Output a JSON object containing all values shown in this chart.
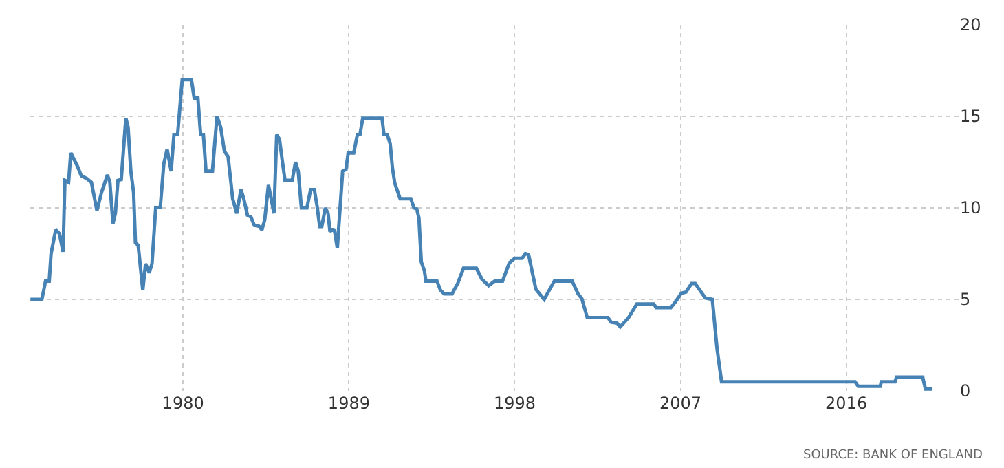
{
  "chart_data": {
    "type": "line",
    "line_style": "solid",
    "marker": "none",
    "grid": true,
    "x": [
      1971.71,
      1972.33,
      1972.53,
      1972.73,
      1972.83,
      1973.08,
      1973.28,
      1973.48,
      1973.58,
      1973.78,
      1973.9,
      1974.27,
      1974.47,
      1974.77,
      1975.02,
      1975.32,
      1975.57,
      1975.89,
      1976.02,
      1976.19,
      1976.32,
      1976.46,
      1976.64,
      1976.89,
      1977.01,
      1977.16,
      1977.31,
      1977.41,
      1977.56,
      1977.81,
      1977.96,
      1978.16,
      1978.31,
      1978.51,
      1978.76,
      1978.95,
      1979.13,
      1979.35,
      1979.5,
      1979.7,
      1979.95,
      1980.45,
      1980.6,
      1980.8,
      1980.95,
      1981.1,
      1981.24,
      1981.59,
      1981.84,
      1982.04,
      1982.24,
      1982.44,
      1982.69,
      1982.91,
      1983.14,
      1983.29,
      1983.49,
      1983.68,
      1983.86,
      1984.11,
      1984.28,
      1984.43,
      1984.63,
      1984.78,
      1984.93,
      1985.08,
      1985.23,
      1985.38,
      1985.53,
      1985.92,
      1986.1,
      1986.25,
      1986.42,
      1986.72,
      1986.92,
      1987.12,
      1987.27,
      1987.42,
      1987.52,
      1987.72,
      1987.87,
      1987.97,
      1988.07,
      1988.22,
      1988.37,
      1988.51,
      1988.66,
      1988.84,
      1988.96,
      1989.26,
      1989.46,
      1989.6,
      1989.75,
      1990.8,
      1990.9,
      1991.08,
      1991.24,
      1991.36,
      1991.49,
      1991.78,
      1992.36,
      1992.53,
      1992.68,
      1992.8,
      1992.93,
      1993.1,
      1993.18,
      1993.78,
      1993.97,
      1994.17,
      1994.6,
      1994.92,
      1995.22,
      1995.92,
      1996.22,
      1996.59,
      1996.91,
      1997.34,
      1997.71,
      1998.01,
      1998.41,
      1998.58,
      1998.75,
      1999.15,
      1999.6,
      2000.15,
      2001.12,
      2001.44,
      2001.64,
      2001.94,
      2003.06,
      2003.24,
      2003.56,
      2003.73,
      2004.18,
      2004.63,
      2005.55,
      2005.68,
      2006.48,
      2006.73,
      2007.05,
      2007.3,
      2007.6,
      2007.8,
      2008.35,
      2008.73,
      2008.98,
      2009.23,
      2016.48,
      2016.65,
      2017.85,
      2017.9,
      2018.65,
      2018.73,
      2020.15,
      2020.3,
      2020.65
    ],
    "values": [
      5,
      5,
      6,
      6,
      7.5,
      8.8,
      8.6,
      7.6,
      11.5,
      11.4,
      13,
      12.25,
      11.75,
      11.6,
      11.4,
      9.85,
      10.85,
      11.8,
      11.4,
      9.15,
      9.7,
      11.5,
      11.55,
      14.9,
      14.4,
      12,
      10.85,
      8.1,
      7.95,
      5.5,
      6.95,
      6.45,
      6.95,
      10,
      10.05,
      12.4,
      13.2,
      12,
      14,
      14,
      17,
      17,
      16,
      16,
      14,
      14,
      12,
      12,
      15,
      14.4,
      13.1,
      12.8,
      10.5,
      9.7,
      11,
      10.5,
      9.6,
      9.5,
      9.05,
      9,
      8.8,
      9.35,
      11.25,
      10.5,
      9.7,
      14,
      13.75,
      12.6,
      11.5,
      11.5,
      12.5,
      12,
      10,
      10,
      11,
      11,
      10.1,
      8.95,
      8.95,
      10,
      9.7,
      8.7,
      8.8,
      8.75,
      7.8,
      9.85,
      12,
      12.1,
      13,
      13,
      14,
      14,
      14.9,
      14.9,
      14,
      14,
      13.5,
      12.2,
      11.35,
      10.5,
      10.5,
      10,
      9.95,
      9.45,
      7.05,
      6.55,
      6,
      6,
      5.5,
      5.3,
      5.3,
      5.9,
      6.7,
      6.7,
      6.1,
      5.75,
      6,
      6,
      7,
      7.25,
      7.25,
      7.5,
      7.45,
      5.55,
      5,
      6,
      6,
      5.3,
      5.05,
      4,
      4,
      3.75,
      3.7,
      3.5,
      4,
      4.75,
      4.75,
      4.55,
      4.55,
      4.87,
      5.34,
      5.4,
      5.86,
      5.86,
      5.08,
      5,
      2.35,
      0.5,
      0.5,
      0.25,
      0.25,
      0.5,
      0.5,
      0.75,
      0.75,
      0.1,
      0.1
    ],
    "color": "#4682b4",
    "xlim": [
      1971.7,
      2022.1
    ],
    "xticks": [
      1980,
      1989,
      1998,
      2007,
      2016
    ],
    "ylim": [
      0,
      20
    ],
    "yticks": [
      0,
      5,
      10,
      15,
      20
    ],
    "annotations": [
      "SOURCE: BANK OF ENGLAND"
    ]
  }
}
